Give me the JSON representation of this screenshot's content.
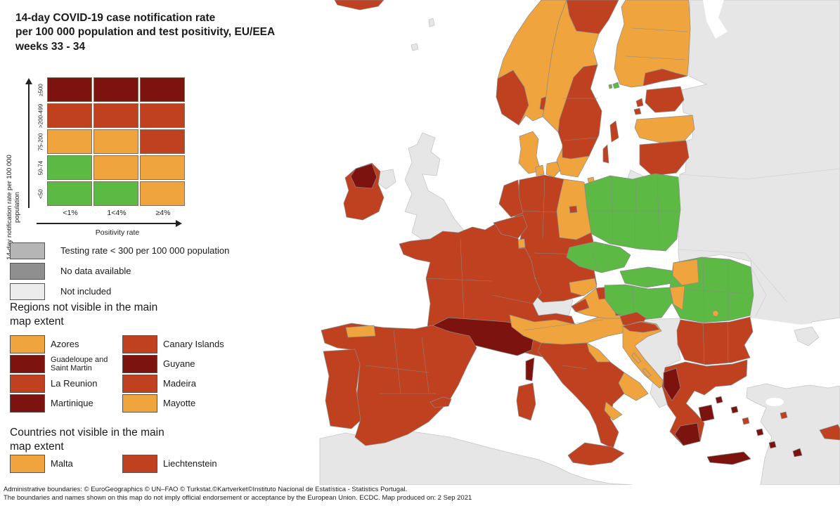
{
  "title": "14-day COVID-19 case notification rate\nper 100 000 population and test positivity, EU/EEA\nweeks 33 - 34",
  "palette": {
    "green": "#5cb944",
    "orange": "#f0a43d",
    "rust": "#bf4120",
    "darkred": "#7d130e",
    "gray_testing": "#b5b5b5",
    "gray_nodata": "#8f8f8f",
    "gray_notincluded": "#ececec",
    "map_gray": "#e6e6e6",
    "sea": "#ffffff"
  },
  "legend_matrix": {
    "y_axis_label": "14-day notification rate per 100 000 population",
    "x_axis_label": "Positivity rate",
    "row_labels": [
      "≥500",
      ">200-499",
      "75-200",
      "50-74",
      "<50"
    ],
    "col_labels": [
      "<1%",
      "1<4%",
      "≥4%"
    ],
    "cell_colors": [
      [
        "darkred",
        "darkred",
        "darkred"
      ],
      [
        "rust",
        "rust",
        "rust"
      ],
      [
        "orange",
        "orange",
        "rust"
      ],
      [
        "green",
        "orange",
        "orange"
      ],
      [
        "green",
        "green",
        "orange"
      ]
    ]
  },
  "status_legend": [
    {
      "color": "gray_testing",
      "label": "Testing rate < 300 per 100 000 population"
    },
    {
      "color": "gray_nodata",
      "label": "No data available"
    },
    {
      "color": "gray_notincluded",
      "label": "Not included"
    }
  ],
  "regions_not_visible": {
    "heading": "Regions not visible in the main map extent",
    "items": [
      {
        "label": "Azores",
        "color": "orange"
      },
      {
        "label": "Canary Islands",
        "color": "rust"
      },
      {
        "label": "Guadeloupe and Saint Martin",
        "color": "darkred"
      },
      {
        "label": "Guyane",
        "color": "darkred"
      },
      {
        "label": "La Reunion",
        "color": "rust"
      },
      {
        "label": "Madeira",
        "color": "rust"
      },
      {
        "label": "Martinique",
        "color": "darkred"
      },
      {
        "label": "Mayotte",
        "color": "orange"
      }
    ]
  },
  "countries_not_visible": {
    "heading": "Countries not visible in the main map extent",
    "items": [
      {
        "label": "Malta",
        "color": "orange"
      },
      {
        "label": "Liechtenstein",
        "color": "rust"
      }
    ]
  },
  "footer": "Administrative boundaries: © EuroGeographics © UN–FAO © Turkstat.©Kartverket©Instituto Nacional de Estatística - Statistics Portugal.\nThe boundaries and names shown on this map do not imply official endorsement or acceptance by the European Union. ECDC. Map produced on: 2 Sep 2021"
}
